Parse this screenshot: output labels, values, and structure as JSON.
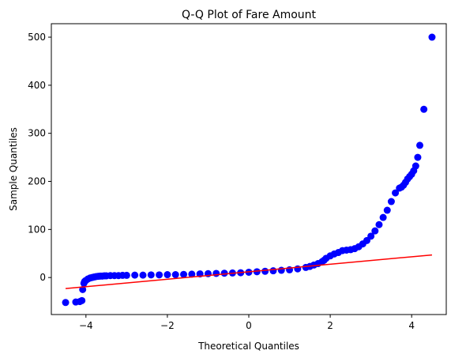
{
  "chart_data": {
    "type": "scatter",
    "title": "Q-Q Plot of Fare Amount",
    "xlabel": "Theoretical Quantiles",
    "ylabel": "Sample Quantiles",
    "xlim": [
      -4.85,
      4.85
    ],
    "ylim": [
      -77,
      528
    ],
    "xticks": [
      -4,
      -2,
      0,
      2,
      4
    ],
    "yticks": [
      0,
      100,
      200,
      300,
      400,
      500
    ],
    "xtick_labels": [
      "−4",
      "−2",
      "0",
      "2",
      "4"
    ],
    "ytick_labels": [
      "0",
      "100",
      "200",
      "300",
      "400",
      "500"
    ],
    "grid": false,
    "point_color": "#0000ff",
    "line_color": "#ff0000",
    "series": [
      {
        "kind": "points",
        "x": [
          -4.5,
          -4.25,
          -4.15,
          -4.1,
          -4.08,
          -4.05,
          -4.03,
          -4.0,
          -3.95,
          -3.9,
          -3.85,
          -3.8,
          -3.75,
          -3.7,
          -3.65,
          -3.6,
          -3.55,
          -3.5,
          -3.4,
          -3.3,
          -3.2,
          -3.1,
          -3.0,
          -2.8,
          -2.6,
          -2.4,
          -2.2,
          -2.0,
          -1.8,
          -1.6,
          -1.4,
          -1.2,
          -1.0,
          -0.8,
          -0.6,
          -0.4,
          -0.2,
          0.0,
          0.2,
          0.4,
          0.6,
          0.8,
          1.0,
          1.2,
          1.4,
          1.5,
          1.6,
          1.7,
          1.8,
          1.85,
          1.9,
          2.0,
          2.1,
          2.2,
          2.3,
          2.4,
          2.5,
          2.6,
          2.7,
          2.8,
          2.9,
          3.0,
          3.1,
          3.2,
          3.3,
          3.4,
          3.5,
          3.6,
          3.7,
          3.75,
          3.8,
          3.85,
          3.9,
          3.95,
          4.0,
          4.05,
          4.1,
          4.15,
          4.2,
          4.3,
          4.5
        ],
        "y": [
          -52,
          -51,
          -50,
          -48,
          -25,
          -12,
          -8,
          -6,
          -3,
          -1,
          0,
          1,
          2,
          2.5,
          3,
          3,
          3.5,
          3.5,
          4,
          4,
          4,
          4.5,
          4.5,
          5,
          5,
          5.5,
          5.5,
          6,
          6,
          6.5,
          7,
          7.5,
          8,
          8.5,
          9,
          9.5,
          10,
          11,
          12,
          13,
          14,
          15,
          16,
          18,
          21,
          23,
          26,
          29,
          33,
          36,
          40,
          45,
          49,
          52,
          56,
          57,
          58,
          60,
          64,
          70,
          77,
          86,
          97,
          110,
          125,
          140,
          158,
          176,
          186,
          188,
          192,
          198,
          205,
          210,
          215,
          222,
          232,
          250,
          275,
          350,
          500
        ]
      },
      {
        "kind": "reference-line",
        "x": [
          -4.5,
          4.5
        ],
        "y": [
          -23,
          47
        ]
      }
    ]
  }
}
